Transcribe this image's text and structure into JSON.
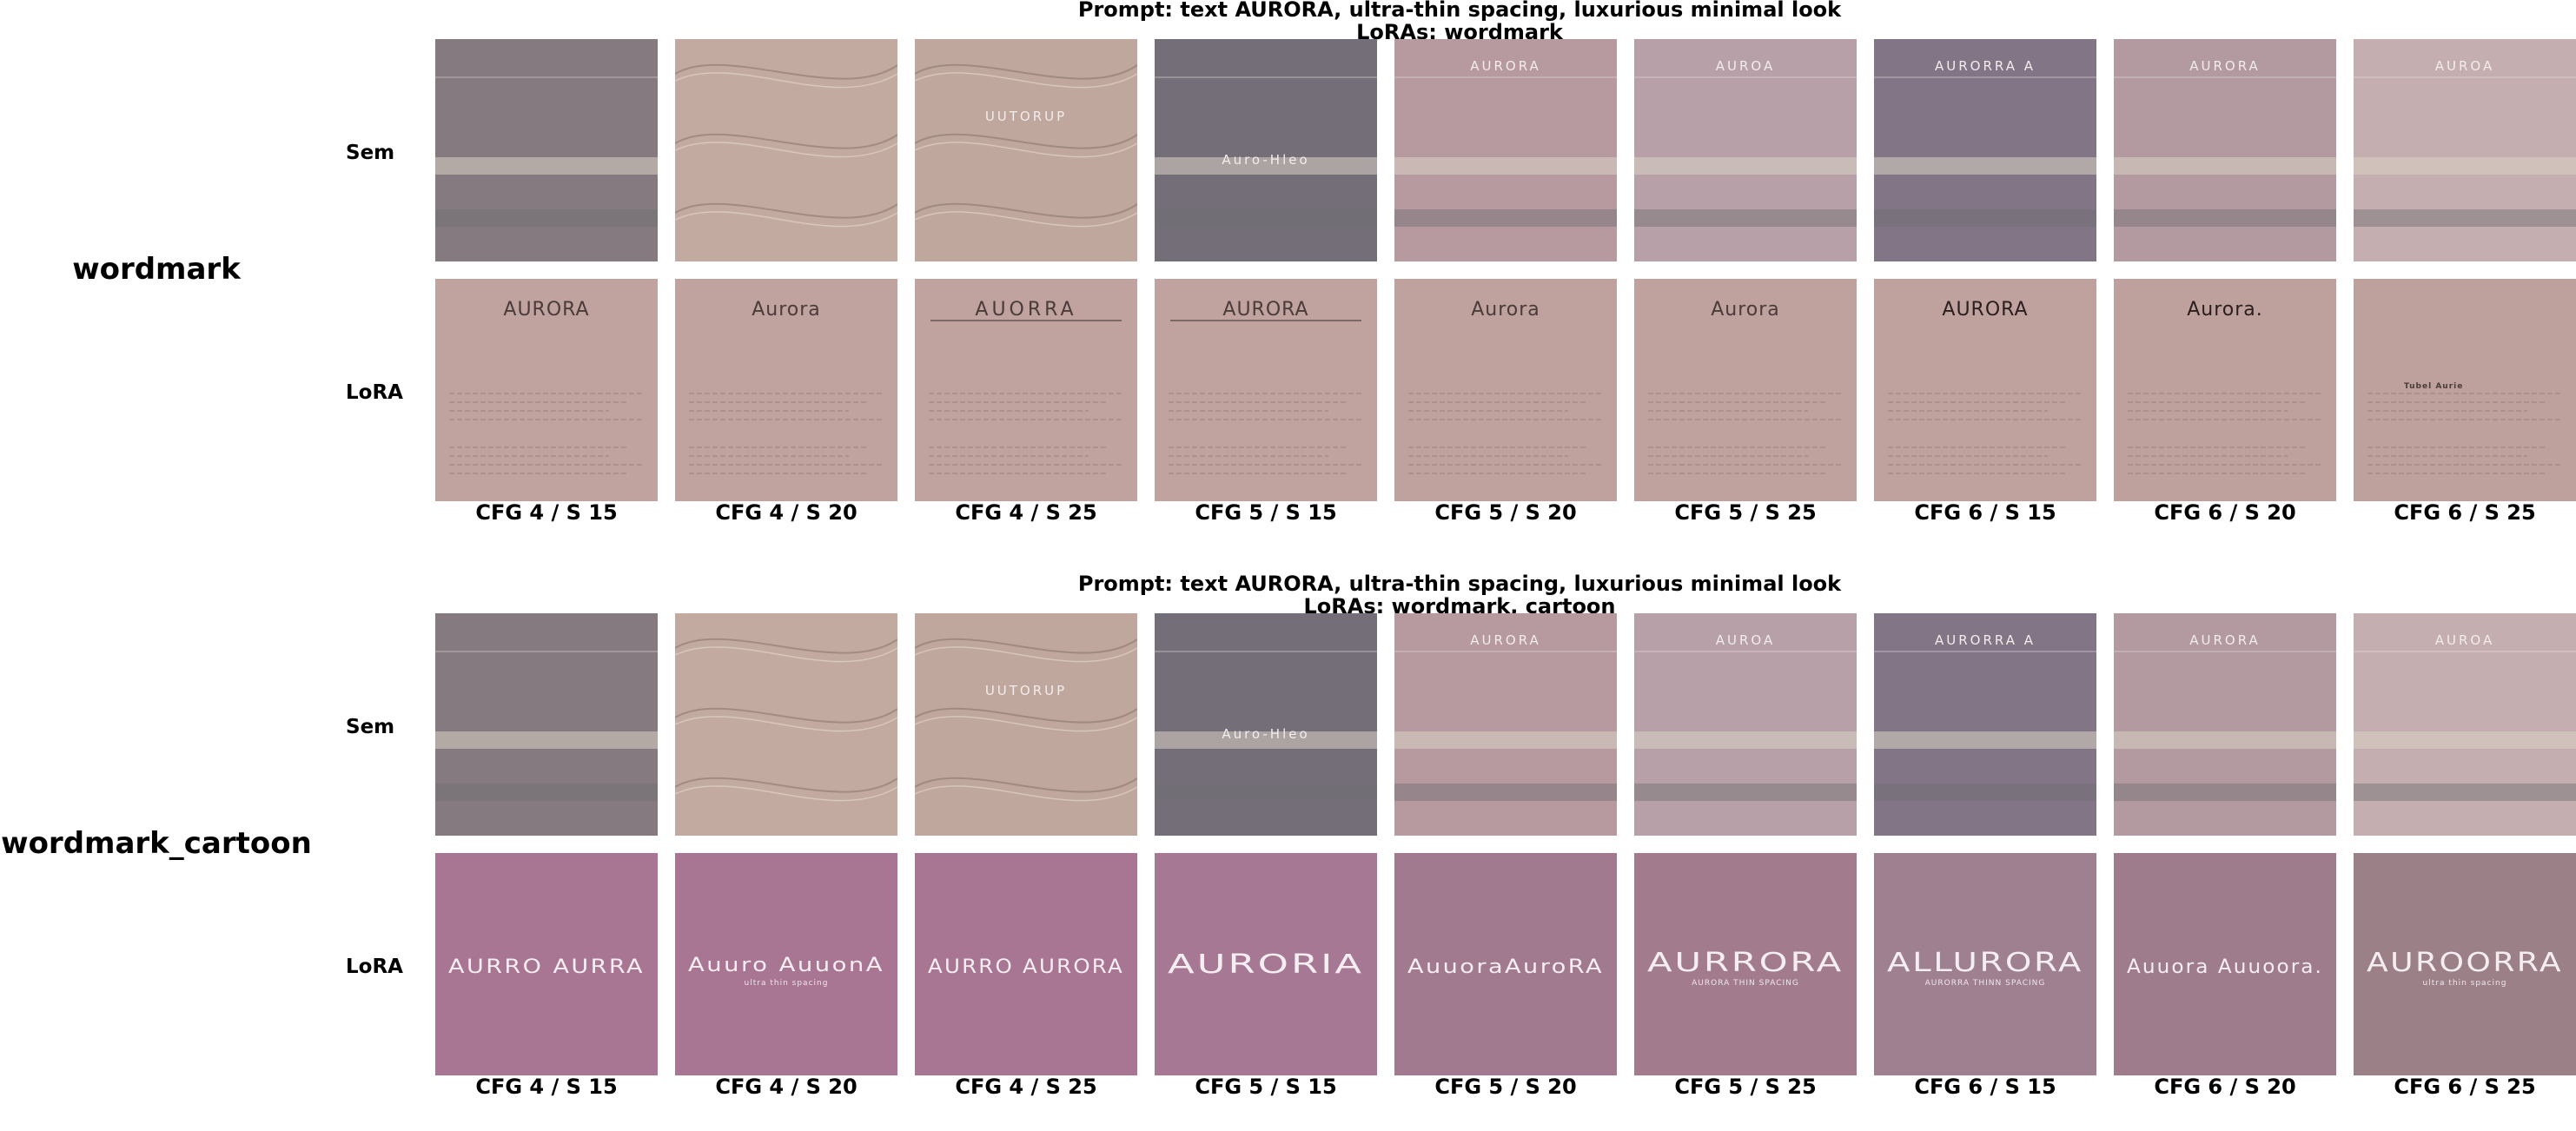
{
  "grids": [
    {
      "title_line1": "Prompt: text AURORA, ultra-thin spacing, luxurious minimal look",
      "title_line2": "LoRAs: wordmark",
      "group_label": "wordmark",
      "row_labels": [
        "Sem",
        "LoRA"
      ],
      "captions": [
        "CFG 4 / S 15",
        "CFG 4 / S 20",
        "CFG 4 / S 25",
        "CFG 5 / S 15",
        "CFG 5 / S 20",
        "CFG 5 / S 25",
        "CFG 6 / S 15",
        "CFG 6 / S 20",
        "CFG 6 / S 25"
      ],
      "sem_tiles": [
        {
          "bg": "#857a80",
          "text": ""
        },
        {
          "bg": "#c2aaa0",
          "text": ""
        },
        {
          "bg": "#bfa79d",
          "text": "UUTORUP"
        },
        {
          "bg": "#736e78",
          "text": "Auro-Hleo"
        },
        {
          "bg": "#b69aa0",
          "text": "AURORA"
        },
        {
          "bg": "#b7a0a8",
          "text": "AUROA"
        },
        {
          "bg": "#827586",
          "text": "AURORRA A"
        },
        {
          "bg": "#b29aa0",
          "text": "AURORA"
        },
        {
          "bg": "#c5aeb0",
          "text": "AUROA"
        }
      ],
      "lora_tiles": [
        {
          "bg": "#c0a29e",
          "text": "AURORA"
        },
        {
          "bg": "#c0a29e",
          "text": "Aurora"
        },
        {
          "bg": "#c0a29e",
          "text": "AUORRA"
        },
        {
          "bg": "#c0a29e",
          "text": "AURORA"
        },
        {
          "bg": "#bfa19d",
          "text": "Aurora"
        },
        {
          "bg": "#bfa19d",
          "text": "Aurora"
        },
        {
          "bg": "#bfa19d",
          "text": "AURORA"
        },
        {
          "bg": "#bea09c",
          "text": "Aurora."
        },
        {
          "bg": "#bea09c",
          "text": "Tubel Aurie"
        }
      ]
    },
    {
      "title_line1": "Prompt: text AURORA, ultra-thin spacing, luxurious minimal look",
      "title_line2": "LoRAs: wordmark, cartoon",
      "group_label": "wordmark_cartoon",
      "row_labels": [
        "Sem",
        "LoRA"
      ],
      "captions": [
        "CFG 4 / S 15",
        "CFG 4 / S 20",
        "CFG 4 / S 25",
        "CFG 5 / S 15",
        "CFG 5 / S 20",
        "CFG 5 / S 25",
        "CFG 6 / S 15",
        "CFG 6 / S 20",
        "CFG 6 / S 25"
      ],
      "sem_tiles": [
        {
          "bg": "#857a80",
          "text": ""
        },
        {
          "bg": "#c2aaa0",
          "text": ""
        },
        {
          "bg": "#bfa79d",
          "text": "UUTORUP"
        },
        {
          "bg": "#736e78",
          "text": "Auro-Hleo"
        },
        {
          "bg": "#b69aa0",
          "text": "AURORA"
        },
        {
          "bg": "#b7a0a8",
          "text": "AUROA"
        },
        {
          "bg": "#827586",
          "text": "AURORRA A"
        },
        {
          "bg": "#b29aa0",
          "text": "AURORA"
        },
        {
          "bg": "#c5aeb0",
          "text": "AUROA"
        }
      ],
      "lora_tiles": [
        {
          "bg": "#a87592",
          "text": "AURRO AURRA",
          "sub": ""
        },
        {
          "bg": "#a87592",
          "text": "Auuro AuuonA",
          "sub": "ultra thin spacing"
        },
        {
          "bg": "#a87592",
          "text": "AURRO AURORA",
          "sub": ""
        },
        {
          "bg": "#a67893",
          "text": "AURORIA",
          "sub": ""
        },
        {
          "bg": "#a27a90",
          "text": "AuuoraAuroRA",
          "sub": ""
        },
        {
          "bg": "#a27c8c",
          "text": "AURRORA",
          "sub": "AURORA THIN SPACING"
        },
        {
          "bg": "#9e8090",
          "text": "ALLURORA",
          "sub": "AURORRA THINN SPACING"
        },
        {
          "bg": "#9e7c8c",
          "text": "Auuora Auuoora.",
          "sub": ""
        },
        {
          "bg": "#9c8088",
          "text": "AUROORRA",
          "sub": "ultra thin spacing"
        }
      ]
    }
  ]
}
